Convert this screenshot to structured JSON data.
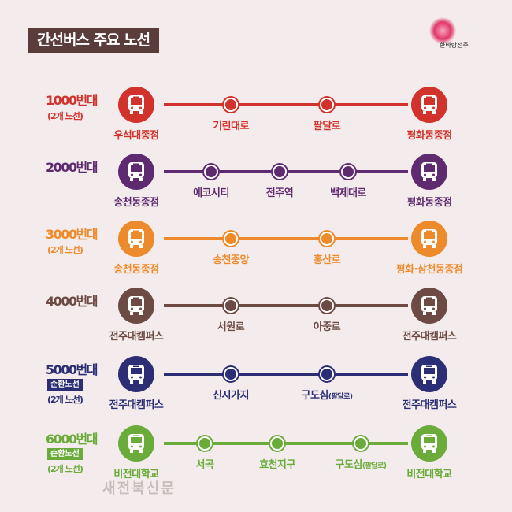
{
  "title": "간선버스 주요 노선",
  "logo_text": "한바탕전주",
  "watermark": "새전북신문",
  "routes": [
    {
      "name": "1000번대",
      "badge": "",
      "sub": "(2개 노선)",
      "color": "#d2322c",
      "start": "우석대종점",
      "end": "평화동종점",
      "stops": [
        "기린대로",
        "팔달로"
      ],
      "stop_notes": [
        "",
        ""
      ]
    },
    {
      "name": "2000번대",
      "badge": "",
      "sub": "",
      "color": "#5f2b70",
      "start": "송천동종점",
      "end": "평화동종점",
      "stops": [
        "에코시티",
        "전주역",
        "백제대로"
      ],
      "stop_notes": [
        "",
        "",
        ""
      ]
    },
    {
      "name": "3000번대",
      "badge": "",
      "sub": "(2개 노선)",
      "color": "#ed8a2b",
      "start": "송천동종점",
      "end": "평화·삼천동종점",
      "stops": [
        "송천중앙",
        "홍산로"
      ],
      "stop_notes": [
        "",
        ""
      ]
    },
    {
      "name": "4000번대",
      "badge": "",
      "sub": "",
      "color": "#6d4a43",
      "start": "전주대캠퍼스",
      "end": "전주대캠퍼스",
      "stops": [
        "서원로",
        "아중로"
      ],
      "stop_notes": [
        "",
        ""
      ]
    },
    {
      "name": "5000번대",
      "badge": "순환노선",
      "sub": "(2개 노선)",
      "color": "#2b2e74",
      "start": "전주대캠퍼스",
      "end": "전주대캠퍼스",
      "stops": [
        "신시가지",
        "구도심"
      ],
      "stop_notes": [
        "",
        "(팔달로)"
      ]
    },
    {
      "name": "6000번대",
      "badge": "순환노선",
      "sub": "(2개 노선)",
      "color": "#6aab3a",
      "start": "비전대학교",
      "end": "비전대학교",
      "stops": [
        "서곡",
        "효천지구",
        "구도심"
      ],
      "stop_notes": [
        "",
        "",
        "(팔달로)"
      ]
    }
  ]
}
